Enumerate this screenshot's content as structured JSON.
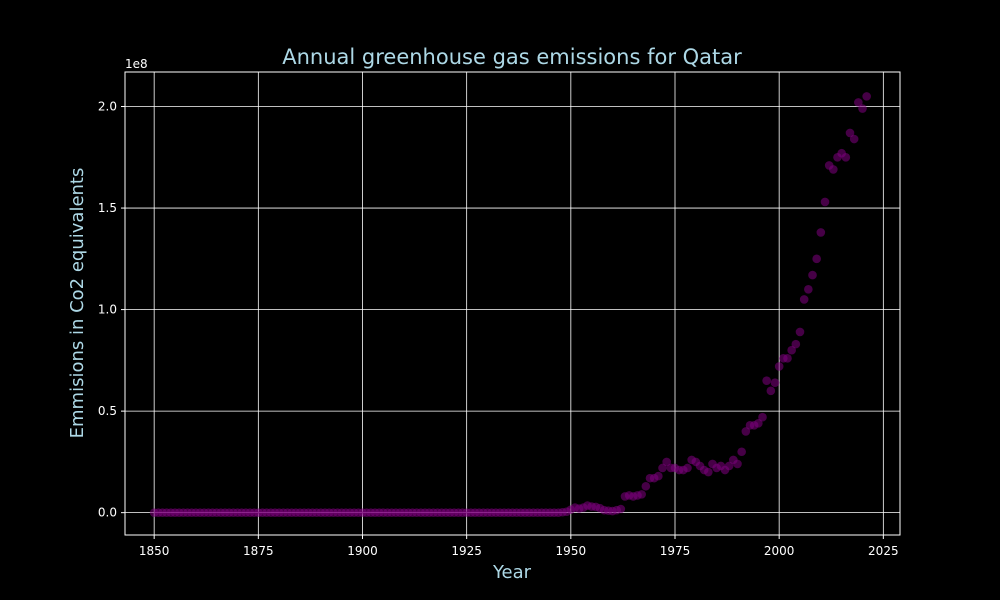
{
  "chart_data": {
    "type": "scatter",
    "title": "Annual greenhouse gas emissions for Qatar",
    "xlabel": "Year",
    "ylabel": "Emmisions in Co2 equivalents",
    "offset_label": "1e8",
    "xlim": [
      1843,
      2029
    ],
    "ylim": [
      -0.11,
      2.17
    ],
    "xticks": [
      1850,
      1875,
      1900,
      1925,
      1950,
      1975,
      2000,
      2025
    ],
    "yticks": [
      0.0,
      0.5,
      1.0,
      1.5,
      2.0
    ],
    "ytick_labels": [
      "0.0",
      "0.5",
      "1.0",
      "1.5",
      "2.0"
    ],
    "grid": true,
    "colors": {
      "background": "#000000",
      "points": "#800080",
      "title": "#add8e6",
      "axis_label": "#add8e6",
      "ticks": "#ffffff",
      "grid": "#ffffff"
    },
    "series": [
      {
        "x": [
          1850,
          1851,
          1852,
          1853,
          1854,
          1855,
          1856,
          1857,
          1858,
          1859,
          1860,
          1861,
          1862,
          1863,
          1864,
          1865,
          1866,
          1867,
          1868,
          1869,
          1870,
          1871,
          1872,
          1873,
          1874,
          1875,
          1876,
          1877,
          1878,
          1879,
          1880,
          1881,
          1882,
          1883,
          1884,
          1885,
          1886,
          1887,
          1888,
          1889,
          1890,
          1891,
          1892,
          1893,
          1894,
          1895,
          1896,
          1897,
          1898,
          1899,
          1900,
          1901,
          1902,
          1903,
          1904,
          1905,
          1906,
          1907,
          1908,
          1909,
          1910,
          1911,
          1912,
          1913,
          1914,
          1915,
          1916,
          1917,
          1918,
          1919,
          1920,
          1921,
          1922,
          1923,
          1924,
          1925,
          1926,
          1927,
          1928,
          1929,
          1930,
          1931,
          1932,
          1933,
          1934,
          1935,
          1936,
          1937,
          1938,
          1939,
          1940,
          1941,
          1942,
          1943,
          1944,
          1945,
          1946,
          1947,
          1948,
          1949,
          1950,
          1951,
          1952,
          1953,
          1954,
          1955,
          1956,
          1957,
          1958,
          1959,
          1960,
          1961,
          1962,
          1963,
          1964,
          1965,
          1966,
          1967,
          1968,
          1969,
          1970,
          1971,
          1972,
          1973,
          1974,
          1975,
          1976,
          1977,
          1978,
          1979,
          1980,
          1981,
          1982,
          1983,
          1984,
          1985,
          1986,
          1987,
          1988,
          1989,
          1990,
          1991,
          1992,
          1993,
          1994,
          1995,
          1996,
          1997,
          1998,
          1999,
          2000,
          2001,
          2002,
          2003,
          2004,
          2005,
          2006,
          2007,
          2008,
          2009,
          2010,
          2011,
          2012,
          2013,
          2014,
          2015,
          2016,
          2017,
          2018,
          2019,
          2020,
          2021
        ],
        "y": [
          0,
          0,
          0,
          0,
          0,
          0,
          0,
          0,
          0,
          0,
          0,
          0,
          0,
          0,
          0,
          0,
          0,
          0,
          0,
          0,
          0,
          0,
          0,
          0,
          0,
          0,
          0,
          0,
          0,
          0,
          0,
          0,
          0,
          0,
          0,
          0,
          0,
          0,
          0,
          0,
          0,
          0,
          0,
          0,
          0,
          0,
          0,
          0,
          0,
          0,
          0,
          0,
          0,
          0,
          0,
          0,
          0,
          0,
          0,
          0,
          0,
          0,
          0,
          0,
          0,
          0,
          0,
          0,
          0,
          0,
          0,
          0,
          0,
          0,
          0,
          0,
          0,
          0,
          0,
          0,
          0,
          0,
          0,
          0,
          0,
          0,
          0,
          0,
          0,
          0,
          0,
          0,
          0,
          0,
          0,
          0,
          0,
          0,
          0.002,
          0.005,
          0.015,
          0.025,
          0.02,
          0.025,
          0.035,
          0.03,
          0.028,
          0.022,
          0.012,
          0.01,
          0.008,
          0.012,
          0.018,
          0.08,
          0.085,
          0.08,
          0.085,
          0.09,
          0.13,
          0.17,
          0.17,
          0.18,
          0.22,
          0.25,
          0.22,
          0.22,
          0.21,
          0.21,
          0.22,
          0.26,
          0.25,
          0.23,
          0.21,
          0.2,
          0.24,
          0.22,
          0.23,
          0.21,
          0.23,
          0.26,
          0.24,
          0.3,
          0.4,
          0.43,
          0.43,
          0.44,
          0.47,
          0.65,
          0.6,
          0.64,
          0.72,
          0.76,
          0.76,
          0.8,
          0.83,
          0.89,
          1.05,
          1.1,
          1.17,
          1.25,
          1.38,
          1.53,
          1.71,
          1.69,
          1.75,
          1.77,
          1.75,
          1.87,
          1.84,
          2.02,
          1.99,
          2.05
        ]
      }
    ]
  }
}
